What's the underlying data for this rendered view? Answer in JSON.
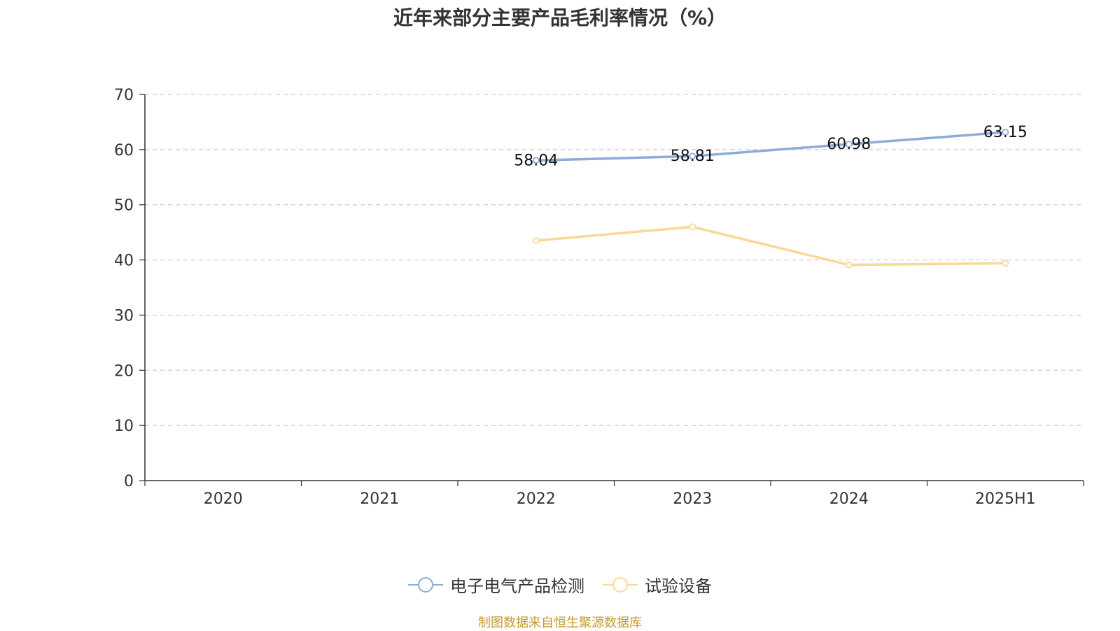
{
  "colors": {
    "series1": "#8eacd8",
    "series2": "#f9d995",
    "axis": "#333333",
    "grid": "#cccccc",
    "source": "#c39a2c"
  },
  "chart_data": {
    "type": "line",
    "title": "近年来部分主要产品毛利率情况（%）",
    "categories": [
      "2020",
      "2021",
      "2022",
      "2023",
      "2024",
      "2025H1"
    ],
    "ylim": [
      0,
      70
    ],
    "yticks": [
      0,
      10,
      20,
      30,
      40,
      50,
      60,
      70
    ],
    "grid": true,
    "legend_position": "bottom",
    "series": [
      {
        "name": "电子电气产品检测",
        "values": [
          null,
          null,
          58.04,
          58.81,
          60.98,
          63.15
        ],
        "labels": [
          "",
          "",
          "58.04",
          "58.81",
          "60.98",
          "63.15"
        ]
      },
      {
        "name": "试验设备",
        "values": [
          null,
          null,
          43.5,
          46.0,
          39.1,
          39.4
        ],
        "labels": [
          "",
          "",
          "",
          "",
          "",
          ""
        ]
      }
    ]
  },
  "source": "制图数据来自恒生聚源数据库"
}
